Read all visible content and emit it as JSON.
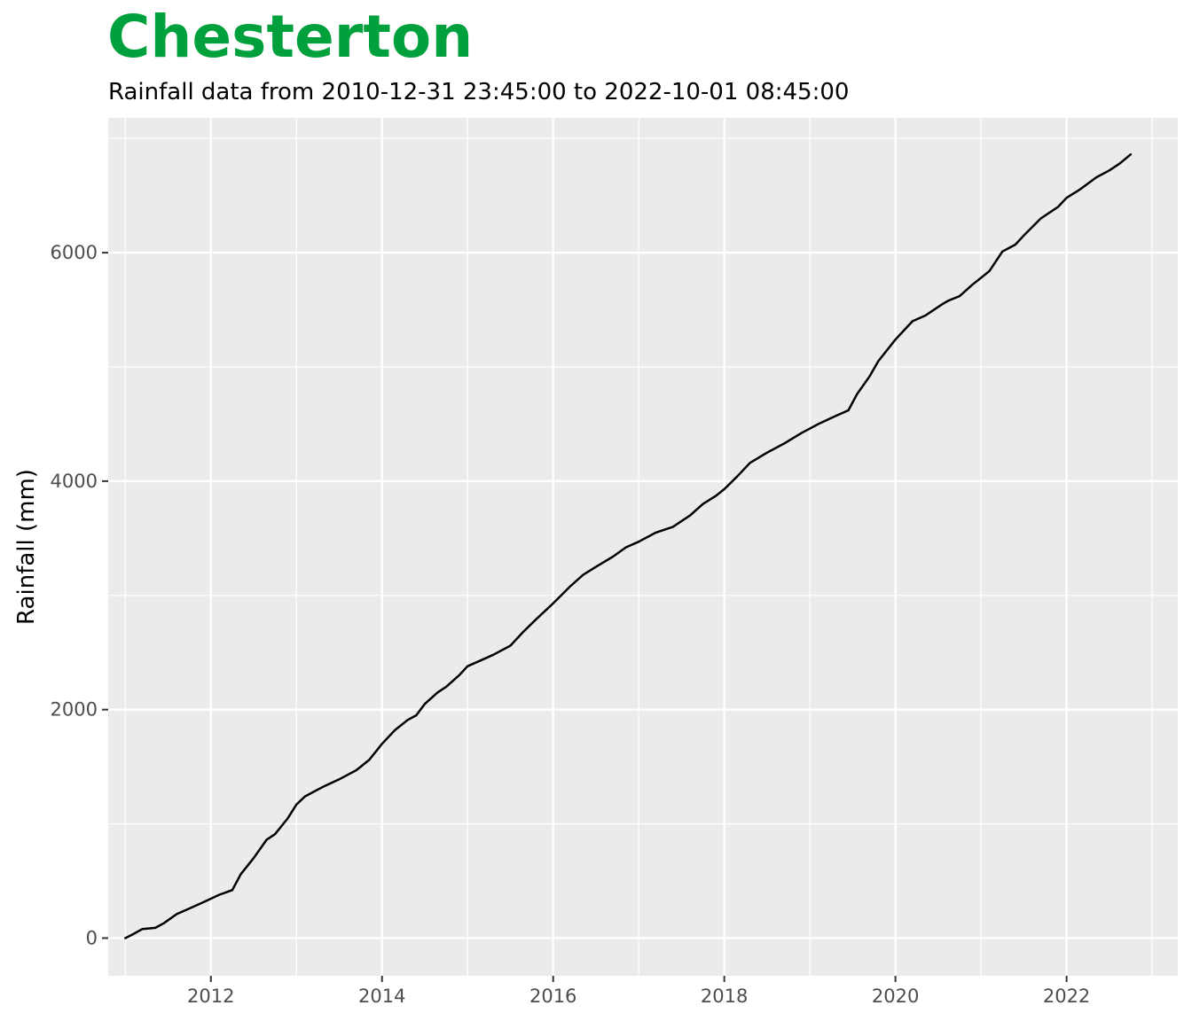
{
  "header": {
    "title": "Chesterton",
    "subtitle": "Rainfall data from 2010-12-31 23:45:00 to 2022-10-01 08:45:00"
  },
  "colors": {
    "title": "#00A03C",
    "panel": "#EBEBEB",
    "grid": "#FFFFFF",
    "line": "#000000",
    "tick_text": "#4D4D4D"
  },
  "chart_data": {
    "type": "line",
    "title": "Chesterton",
    "subtitle": "Rainfall data from 2010-12-31 23:45:00 to 2022-10-01 08:45:00",
    "xlabel": "",
    "ylabel": "Rainfall (mm)",
    "x_ticks": [
      "2012",
      "2014",
      "2016",
      "2018",
      "2020",
      "2022"
    ],
    "y_ticks": [
      0,
      2000,
      4000,
      6000
    ],
    "xlim": [
      2010.8,
      2023.3
    ],
    "ylim": [
      -330,
      7180
    ],
    "grid": true,
    "legend": "none",
    "series": [
      {
        "x": [
          2011.0,
          2011.08,
          2011.2,
          2011.35,
          2011.45,
          2011.6,
          2011.75,
          2011.9,
          2012.1,
          2012.25,
          2012.35,
          2012.5,
          2012.65,
          2012.75,
          2012.9,
          2013.0,
          2013.1,
          2013.3,
          2013.5,
          2013.7,
          2013.85,
          2014.0,
          2014.15,
          2014.3,
          2014.4,
          2014.5,
          2014.65,
          2014.75,
          2014.9,
          2015.0,
          2015.15,
          2015.3,
          2015.5,
          2015.65,
          2015.8,
          2016.0,
          2016.2,
          2016.35,
          2016.5,
          2016.7,
          2016.85,
          2017.0,
          2017.2,
          2017.4,
          2017.6,
          2017.75,
          2017.9,
          2018.0,
          2018.15,
          2018.3,
          2018.5,
          2018.7,
          2018.9,
          2019.1,
          2019.3,
          2019.45,
          2019.55,
          2019.7,
          2019.8,
          2020.0,
          2020.2,
          2020.35,
          2020.55,
          2020.62,
          2020.75,
          2020.9,
          2021.0,
          2021.1,
          2021.25,
          2021.4,
          2021.5,
          2021.7,
          2021.9,
          2022.0,
          2022.15,
          2022.35,
          2022.5,
          2022.62,
          2022.75
        ],
        "y": [
          0,
          30,
          80,
          90,
          130,
          210,
          260,
          310,
          380,
          420,
          560,
          700,
          860,
          910,
          1050,
          1170,
          1240,
          1320,
          1390,
          1470,
          1560,
          1700,
          1820,
          1910,
          1950,
          2050,
          2150,
          2200,
          2300,
          2380,
          2430,
          2480,
          2560,
          2680,
          2790,
          2930,
          3080,
          3180,
          3250,
          3340,
          3420,
          3470,
          3550,
          3600,
          3700,
          3800,
          3870,
          3930,
          4040,
          4160,
          4250,
          4330,
          4420,
          4500,
          4570,
          4620,
          4760,
          4920,
          5050,
          5240,
          5400,
          5450,
          5550,
          5580,
          5620,
          5720,
          5780,
          5840,
          6010,
          6070,
          6150,
          6300,
          6400,
          6480,
          6550,
          6660,
          6720,
          6780,
          6860
        ]
      }
    ]
  }
}
